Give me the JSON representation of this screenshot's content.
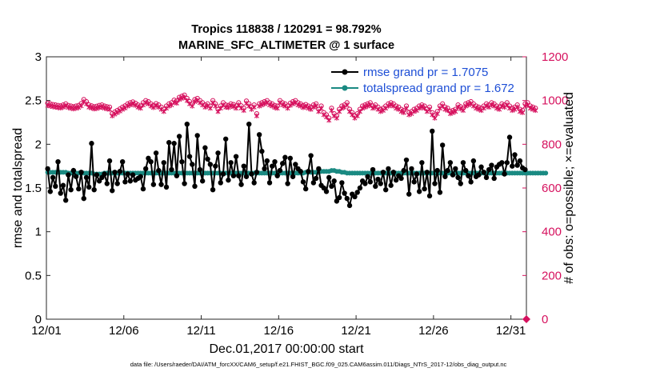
{
  "chart_data": {
    "type": "line",
    "title": "Tropics 118838 / 120291 = 98.792%",
    "subtitle": "MARINE_SFC_ALTIMETER @ 1 surface",
    "xlabel": "Dec.01,2017 00:00:00 start",
    "ylabel_left": "rmse and totalspread",
    "ylabel_right": "# of obs: o=possible; ×=evaluated",
    "footnote": "data file: /Users/raeder/DAI/ATM_forcXX/CAM6_setup/f.e21.FHIST_BGC.f09_025.CAM6assim.011/Diags_NTrS_2017-12/obs_diag_output.nc",
    "xlim": [
      1,
      32
    ],
    "x_tick_labels": [
      "12/01",
      "12/06",
      "12/11",
      "12/16",
      "12/21",
      "12/26",
      "12/31"
    ],
    "x_tick_values": [
      1,
      6,
      11,
      16,
      21,
      26,
      31
    ],
    "ylim_left": [
      0,
      3
    ],
    "y_left_ticks": [
      "0",
      "0.5",
      "1",
      "1.5",
      "2",
      "2.5",
      "3"
    ],
    "ylim_right": [
      0,
      1200
    ],
    "y_right_ticks": [
      "0",
      "200",
      "400",
      "600",
      "800",
      "1000",
      "1200"
    ],
    "colors": {
      "rmse": "#000000",
      "totalspread": "#1a8a82",
      "obs": "#d6115e",
      "legend_text": "#1e4fd6"
    },
    "legend": {
      "rmse_label": "rmse grand pr = 1.7075",
      "spread_label": "totalspread grand pr = 1.672"
    },
    "series": [
      {
        "name": "rmse",
        "axis": "left",
        "values": [
          1.72,
          1.46,
          1.62,
          1.52,
          1.8,
          1.44,
          1.53,
          1.36,
          1.65,
          1.48,
          1.7,
          1.63,
          1.49,
          1.68,
          1.38,
          1.62,
          1.51,
          2.01,
          1.48,
          1.65,
          1.58,
          1.62,
          1.66,
          1.55,
          1.81,
          1.47,
          1.68,
          1.55,
          1.69,
          1.8,
          1.57,
          1.66,
          1.58,
          1.65,
          1.59,
          1.61,
          1.63,
          1.49,
          1.72,
          1.84,
          1.8,
          1.54,
          1.9,
          1.7,
          1.54,
          1.79,
          1.51,
          2.02,
          1.71,
          2.01,
          1.64,
          2.09,
          1.8,
          1.55,
          2.23,
          1.86,
          1.77,
          1.52,
          2.1,
          1.71,
          1.58,
          1.96,
          1.83,
          1.77,
          1.48,
          1.75,
          1.9,
          1.56,
          1.66,
          2.06,
          1.59,
          1.79,
          1.64,
          1.86,
          1.64,
          1.54,
          1.75,
          1.63,
          2.23,
          1.66,
          1.56,
          1.68,
          2.11,
          1.92,
          1.72,
          1.81,
          1.56,
          1.75,
          1.8,
          1.64,
          1.7,
          1.78,
          1.85,
          1.55,
          1.84,
          1.63,
          1.77,
          1.72,
          1.69,
          1.57,
          1.49,
          1.69,
          1.87,
          1.56,
          1.61,
          1.72,
          1.53,
          1.5,
          1.46,
          1.62,
          1.52,
          1.58,
          1.35,
          1.39,
          1.56,
          1.44,
          1.38,
          1.3,
          1.43,
          1.4,
          1.45,
          1.5,
          1.58,
          1.55,
          1.63,
          1.57,
          1.71,
          1.52,
          1.6,
          1.55,
          1.68,
          1.48,
          1.72,
          1.53,
          1.68,
          1.59,
          1.64,
          1.61,
          1.7,
          1.82,
          1.43,
          1.72,
          1.57,
          1.66,
          1.46,
          1.79,
          1.49,
          1.68,
          1.41,
          2.15,
          1.55,
          1.7,
          1.45,
          1.99,
          1.63,
          1.7,
          1.79,
          1.65,
          1.72,
          1.62,
          1.55,
          1.79,
          1.7,
          1.64,
          1.57,
          1.81,
          1.63,
          1.65,
          1.74,
          1.68,
          1.62,
          1.71,
          1.76,
          1.61,
          1.74,
          1.77,
          1.79,
          1.66,
          1.79,
          2.08,
          1.75,
          1.88,
          1.76,
          1.81,
          1.73,
          1.71
        ]
      },
      {
        "name": "totalspread",
        "axis": "left",
        "values": [
          1.68,
          1.68,
          1.68,
          1.68,
          1.68,
          1.68,
          1.68,
          1.68,
          1.67,
          1.67,
          1.67,
          1.67,
          1.67,
          1.67,
          1.67,
          1.67,
          1.67,
          1.67,
          1.66,
          1.66,
          1.66,
          1.66,
          1.67,
          1.67,
          1.67,
          1.67,
          1.67,
          1.67,
          1.67,
          1.67,
          1.67,
          1.67,
          1.67,
          1.67,
          1.67,
          1.67,
          1.67,
          1.67,
          1.67,
          1.67,
          1.67,
          1.67,
          1.67,
          1.67,
          1.67,
          1.67,
          1.67,
          1.67,
          1.67,
          1.67,
          1.67,
          1.67,
          1.67,
          1.67,
          1.67,
          1.67,
          1.67,
          1.67,
          1.67,
          1.67,
          1.67,
          1.67,
          1.67,
          1.67,
          1.67,
          1.67,
          1.67,
          1.67,
          1.67,
          1.67,
          1.67,
          1.67,
          1.67,
          1.67,
          1.67,
          1.67,
          1.67,
          1.67,
          1.67,
          1.67,
          1.67,
          1.67,
          1.67,
          1.67,
          1.67,
          1.67,
          1.67,
          1.67,
          1.67,
          1.67,
          1.67,
          1.67,
          1.67,
          1.67,
          1.67,
          1.67,
          1.67,
          1.67,
          1.67,
          1.67,
          1.68,
          1.68,
          1.68,
          1.68,
          1.68,
          1.68,
          1.69,
          1.69,
          1.69,
          1.69,
          1.7,
          1.7,
          1.69,
          1.69,
          1.68,
          1.68,
          1.67,
          1.67,
          1.67,
          1.67,
          1.67,
          1.67,
          1.67,
          1.67,
          1.67,
          1.67,
          1.67,
          1.67,
          1.67,
          1.67,
          1.67,
          1.67,
          1.67,
          1.67,
          1.67,
          1.67,
          1.67,
          1.67,
          1.67,
          1.67,
          1.67,
          1.67,
          1.67,
          1.67,
          1.67,
          1.67,
          1.67,
          1.67,
          1.67,
          1.67,
          1.67,
          1.67,
          1.67,
          1.67,
          1.67,
          1.67,
          1.67,
          1.67,
          1.67,
          1.67,
          1.67,
          1.67,
          1.67,
          1.67,
          1.67,
          1.67,
          1.67,
          1.67,
          1.67,
          1.67,
          1.67,
          1.67,
          1.67,
          1.67,
          1.67,
          1.67,
          1.67,
          1.67,
          1.67,
          1.67,
          1.67,
          1.67,
          1.67,
          1.67,
          1.67,
          1.67,
          1.67,
          1.67,
          1.67,
          1.67,
          1.67,
          1.67,
          1.67,
          1.67
        ]
      },
      {
        "name": "obs_possible",
        "axis": "right",
        "values": [
          988,
          985,
          982,
          980,
          978,
          976,
          980,
          985,
          978,
          975,
          972,
          975,
          978,
          986,
          1005,
          995,
          980,
          976,
          972,
          974,
          978,
          980,
          975,
          972,
          970,
          940,
          948,
          955,
          962,
          970,
          976,
          985,
          990,
          994,
          988,
          980,
          975,
          990,
          1000,
          995,
          985,
          978,
          986,
          980,
          970,
          960,
          975,
          985,
          990,
          1002,
          998,
          1015,
          1020,
          1025,
          1010,
          995,
          985,
          1005,
          1010,
          1000,
          990,
          980,
          985,
          975,
          1000,
          985,
          960,
          975,
          990,
          980,
          978,
          985,
          982,
          975,
          990,
          976,
          965,
          998,
          985,
          970,
          980,
          940,
          985,
          990,
          995,
          1000,
          990,
          985,
          978,
          975,
          1000,
          990,
          985,
          975,
          988,
          995,
          1000,
          990,
          985,
          978,
          982,
          975,
          970,
          980,
          985,
          960,
          975,
          945,
          935,
          920,
          965,
          940,
          930,
          960,
          975,
          980,
          990,
          960,
          945,
          930,
          940,
          960,
          975,
          980,
          985,
          990,
          975,
          980,
          970,
          960,
          965,
          975,
          985,
          990,
          985,
          975,
          970,
          960,
          955,
          975,
          945,
          950,
          960,
          965,
          975,
          980,
          975,
          960,
          970,
          945,
          930,
          950,
          975,
          985,
          970,
          965,
          950,
          955,
          960,
          980,
          972,
          965,
          985,
          990,
          995,
          985,
          975,
          970,
          965,
          975,
          985,
          980,
          990,
          985,
          975,
          970,
          985,
          980,
          990,
          975,
          965,
          970,
          980,
          960,
          955,
          985,
          990,
          975,
          970,
          965
        ]
      },
      {
        "name": "obs_evaluated",
        "axis": "right",
        "values": [
          978,
          975,
          972,
          970,
          968,
          966,
          970,
          975,
          968,
          965,
          962,
          965,
          968,
          976,
          995,
          985,
          970,
          966,
          962,
          964,
          968,
          970,
          965,
          962,
          960,
          930,
          938,
          945,
          952,
          960,
          966,
          975,
          980,
          984,
          978,
          970,
          965,
          980,
          990,
          985,
          975,
          968,
          976,
          970,
          960,
          950,
          965,
          975,
          980,
          992,
          988,
          1005,
          1010,
          1015,
          1000,
          985,
          975,
          995,
          1000,
          990,
          980,
          970,
          975,
          965,
          990,
          975,
          950,
          965,
          980,
          970,
          968,
          975,
          972,
          965,
          980,
          966,
          955,
          988,
          975,
          960,
          970,
          930,
          975,
          980,
          985,
          990,
          980,
          975,
          968,
          965,
          990,
          980,
          975,
          965,
          978,
          985,
          990,
          980,
          975,
          968,
          972,
          965,
          960,
          970,
          975,
          950,
          965,
          935,
          925,
          910,
          955,
          930,
          920,
          950,
          965,
          970,
          980,
          950,
          935,
          920,
          930,
          950,
          965,
          970,
          975,
          980,
          965,
          970,
          960,
          950,
          955,
          965,
          975,
          980,
          975,
          965,
          960,
          950,
          945,
          965,
          935,
          940,
          950,
          955,
          965,
          970,
          965,
          950,
          960,
          935,
          920,
          940,
          965,
          975,
          960,
          955,
          940,
          945,
          950,
          970,
          962,
          955,
          975,
          980,
          985,
          975,
          965,
          960,
          955,
          965,
          975,
          970,
          980,
          975,
          965,
          960,
          975,
          970,
          980,
          965,
          955,
          960,
          970,
          950,
          945,
          975,
          980,
          965,
          960,
          955
        ]
      }
    ]
  }
}
